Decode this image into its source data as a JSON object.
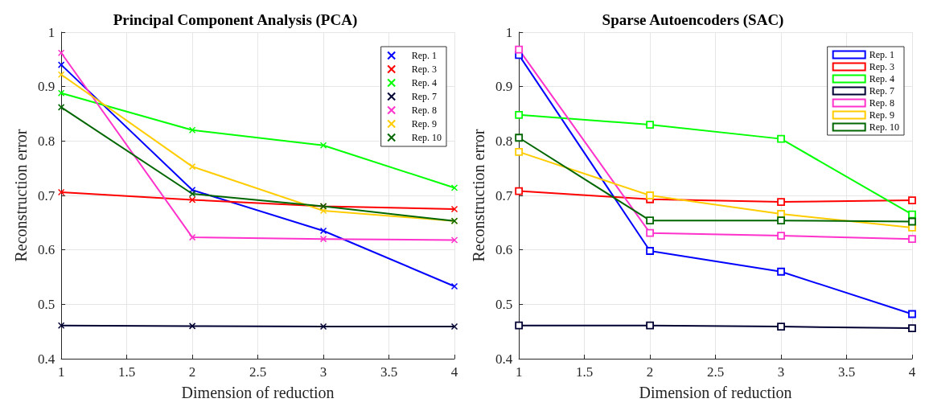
{
  "chart_data": [
    {
      "type": "line",
      "title": "Principal Component Analysis (PCA)",
      "xlabel": "Dimension of reduction",
      "ylabel": "Reconstruction error",
      "x": [
        1,
        2,
        3,
        4
      ],
      "xlim": [
        1,
        4
      ],
      "xticks": [
        1,
        1.5,
        2,
        2.5,
        3,
        3.5,
        4
      ],
      "ylim": [
        0.4,
        1
      ],
      "yticks": [
        0.4,
        0.5,
        0.6,
        0.7,
        0.8,
        0.9,
        1
      ],
      "grid": true,
      "legend": "top right",
      "marker": "cross",
      "series": [
        {
          "name": "Rep. 1",
          "color": "#0000ff",
          "values": [
            0.94,
            0.71,
            0.635,
            0.533
          ]
        },
        {
          "name": "Rep. 3",
          "color": "#ff0000",
          "values": [
            0.706,
            0.692,
            0.68,
            0.675
          ]
        },
        {
          "name": "Rep. 4",
          "color": "#00ff00",
          "values": [
            0.888,
            0.82,
            0.792,
            0.714
          ]
        },
        {
          "name": "Rep. 7",
          "color": "#000033",
          "values": [
            0.461,
            0.46,
            0.459,
            0.459
          ]
        },
        {
          "name": "Rep. 8",
          "color": "#ff33cc",
          "values": [
            0.962,
            0.623,
            0.62,
            0.618
          ]
        },
        {
          "name": "Rep. 9",
          "color": "#ffcc00",
          "values": [
            0.922,
            0.753,
            0.672,
            0.653
          ]
        },
        {
          "name": "Rep. 10",
          "color": "#006600",
          "values": [
            0.862,
            0.703,
            0.68,
            0.653
          ]
        }
      ]
    },
    {
      "type": "line",
      "title": "Sparse Autoencoders (SAC)",
      "xlabel": "Dimension of reduction",
      "ylabel": "Reconstruction error",
      "x": [
        1,
        2,
        3,
        4
      ],
      "xlim": [
        1,
        4
      ],
      "xticks": [
        1,
        1.5,
        2,
        2.5,
        3,
        3.5,
        4
      ],
      "ylim": [
        0.4,
        1
      ],
      "yticks": [
        0.4,
        0.5,
        0.6,
        0.7,
        0.8,
        0.9,
        1
      ],
      "grid": true,
      "legend": "top right",
      "marker": "square",
      "series": [
        {
          "name": "Rep. 1",
          "color": "#0000ff",
          "values": [
            0.958,
            0.598,
            0.56,
            0.482
          ]
        },
        {
          "name": "Rep. 3",
          "color": "#ff0000",
          "values": [
            0.708,
            0.693,
            0.688,
            0.691
          ]
        },
        {
          "name": "Rep. 4",
          "color": "#00ff00",
          "values": [
            0.848,
            0.83,
            0.804,
            0.665
          ]
        },
        {
          "name": "Rep. 7",
          "color": "#000033",
          "values": [
            0.461,
            0.461,
            0.459,
            0.456
          ]
        },
        {
          "name": "Rep. 8",
          "color": "#ff33cc",
          "values": [
            0.968,
            0.631,
            0.626,
            0.62
          ]
        },
        {
          "name": "Rep. 9",
          "color": "#ffcc00",
          "values": [
            0.78,
            0.7,
            0.666,
            0.641
          ]
        },
        {
          "name": "Rep. 10",
          "color": "#006600",
          "values": [
            0.806,
            0.654,
            0.654,
            0.652
          ]
        }
      ]
    }
  ]
}
